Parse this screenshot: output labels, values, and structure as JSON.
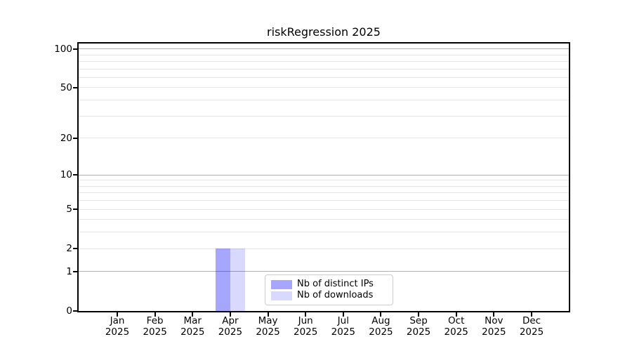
{
  "chart_data": {
    "type": "bar",
    "title": "riskRegression 2025",
    "x_months": [
      "Jan",
      "Feb",
      "Mar",
      "Apr",
      "May",
      "Jun",
      "Jul",
      "Aug",
      "Sep",
      "Oct",
      "Nov",
      "Dec"
    ],
    "x_year": "2025",
    "series": [
      {
        "name": "Nb of distinct IPs",
        "color": "rgba(0,0,255,0.35)",
        "values": [
          0,
          0,
          0,
          2,
          0,
          0,
          0,
          0,
          0,
          0,
          0,
          0
        ]
      },
      {
        "name": "Nb of downloads",
        "color": "rgba(0,0,255,0.15)",
        "values": [
          0,
          0,
          0,
          2,
          0,
          0,
          0,
          0,
          0,
          0,
          0,
          0
        ]
      }
    ],
    "yscale": "log1p",
    "ylim": [
      0,
      110
    ],
    "ytick_values": [
      0,
      1,
      2,
      5,
      10,
      20,
      50,
      100
    ],
    "major_grid_values": [
      1,
      10,
      100
    ],
    "minor_grid_values": [
      2,
      3,
      4,
      5,
      6,
      7,
      8,
      9,
      20,
      30,
      40,
      50,
      60,
      70,
      80,
      90
    ],
    "grid_major_color": "#b0b0b0",
    "grid_minor_color": "#e7e7e7",
    "legend": {
      "position": "lower center"
    }
  }
}
